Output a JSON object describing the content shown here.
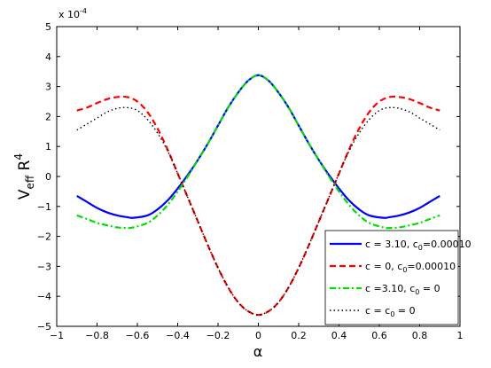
{
  "chart_data": {
    "type": "line",
    "xlabel": "α",
    "ylabel": "V",
    "ylabel_sub": "eff",
    "ylabel_tail": " R",
    "ylabel_sup": "4",
    "exponent_label": "x 10",
    "exponent_power": "-4",
    "xlim": [
      -1,
      1
    ],
    "ylim": [
      -5,
      5
    ],
    "xticks": [
      "−1",
      "−0.8",
      "−0.6",
      "−0.4",
      "−0.2",
      "0",
      "0.2",
      "0.4",
      "0.6",
      "0.8",
      "1"
    ],
    "yticks": [
      "−5",
      "−4",
      "−3",
      "−2",
      "−1",
      "0",
      "1",
      "2",
      "3",
      "4",
      "5"
    ],
    "grid": false,
    "legend_position": "bottom-right",
    "series": [
      {
        "legend_main": "c = 3.10, c",
        "legend_sub": "0",
        "legend_tail": "=0.00010",
        "color": "#0000ff",
        "dash": "solid",
        "x": [
          -0.9,
          -0.85,
          -0.8,
          -0.75,
          -0.7,
          -0.65,
          -0.62,
          -0.55,
          -0.5,
          -0.45,
          -0.4,
          -0.35,
          -0.3,
          -0.25,
          -0.2,
          -0.15,
          -0.1,
          -0.05,
          0,
          0.05,
          0.1,
          0.15,
          0.2,
          0.25,
          0.3,
          0.35,
          0.4,
          0.45,
          0.5,
          0.55,
          0.62,
          0.65,
          0.7,
          0.75,
          0.8,
          0.85,
          0.9
        ],
        "y": [
          -0.65,
          -0.85,
          -1.05,
          -1.2,
          -1.3,
          -1.36,
          -1.38,
          -1.3,
          -1.1,
          -0.8,
          -0.4,
          0.05,
          0.55,
          1.1,
          1.7,
          2.3,
          2.8,
          3.2,
          3.38,
          3.2,
          2.8,
          2.3,
          1.7,
          1.1,
          0.55,
          0.05,
          -0.4,
          -0.8,
          -1.1,
          -1.3,
          -1.38,
          -1.36,
          -1.3,
          -1.2,
          -1.05,
          -0.85,
          -0.65
        ]
      },
      {
        "legend_main": "c = 0, c",
        "legend_sub": "0",
        "legend_tail": "=0.00010",
        "color": "#ff0000",
        "dash": "7,4",
        "x": [
          -0.9,
          -0.85,
          -0.8,
          -0.75,
          -0.7,
          -0.65,
          -0.6,
          -0.55,
          -0.5,
          -0.45,
          -0.4,
          -0.35,
          -0.3,
          -0.25,
          -0.2,
          -0.15,
          -0.1,
          -0.05,
          0,
          0.05,
          0.1,
          0.15,
          0.2,
          0.25,
          0.3,
          0.35,
          0.4,
          0.45,
          0.5,
          0.55,
          0.6,
          0.65,
          0.7,
          0.75,
          0.8,
          0.85,
          0.9
        ],
        "y": [
          2.2,
          2.3,
          2.45,
          2.58,
          2.65,
          2.65,
          2.5,
          2.15,
          1.6,
          0.9,
          0.1,
          -0.7,
          -1.5,
          -2.3,
          -3.05,
          -3.7,
          -4.2,
          -4.5,
          -4.62,
          -4.5,
          -4.2,
          -3.7,
          -3.05,
          -2.3,
          -1.5,
          -0.7,
          0.1,
          0.9,
          1.6,
          2.15,
          2.5,
          2.65,
          2.65,
          2.58,
          2.45,
          2.3,
          2.2
        ]
      },
      {
        "legend_main": "c =3.10, c",
        "legend_sub": "0",
        "legend_tail": " = 0",
        "color": "#00dd00",
        "dash": "7,3,2,3",
        "x": [
          -0.9,
          -0.85,
          -0.8,
          -0.75,
          -0.7,
          -0.65,
          -0.62,
          -0.55,
          -0.5,
          -0.45,
          -0.4,
          -0.35,
          -0.3,
          -0.25,
          -0.2,
          -0.15,
          -0.1,
          -0.05,
          0,
          0.05,
          0.1,
          0.15,
          0.2,
          0.25,
          0.3,
          0.35,
          0.4,
          0.45,
          0.5,
          0.55,
          0.62,
          0.65,
          0.7,
          0.75,
          0.8,
          0.85,
          0.9
        ],
        "y": [
          -1.3,
          -1.42,
          -1.55,
          -1.63,
          -1.7,
          -1.72,
          -1.7,
          -1.55,
          -1.3,
          -0.95,
          -0.5,
          0.0,
          0.55,
          1.1,
          1.7,
          2.3,
          2.8,
          3.2,
          3.38,
          3.2,
          2.8,
          2.3,
          1.7,
          1.1,
          0.55,
          0.0,
          -0.5,
          -0.95,
          -1.3,
          -1.55,
          -1.7,
          -1.72,
          -1.7,
          -1.63,
          -1.55,
          -1.42,
          -1.3
        ]
      },
      {
        "legend_main": "c = c",
        "legend_sub": "0",
        "legend_tail": " = 0",
        "color": "#000000",
        "dash": "1.5,3",
        "x": [
          -0.9,
          -0.85,
          -0.8,
          -0.75,
          -0.7,
          -0.65,
          -0.6,
          -0.55,
          -0.5,
          -0.45,
          -0.4,
          -0.35,
          -0.3,
          -0.25,
          -0.2,
          -0.15,
          -0.1,
          -0.05,
          0,
          0.05,
          0.1,
          0.15,
          0.2,
          0.25,
          0.3,
          0.35,
          0.4,
          0.45,
          0.5,
          0.55,
          0.6,
          0.65,
          0.7,
          0.75,
          0.8,
          0.85,
          0.9
        ],
        "y": [
          1.55,
          1.75,
          1.95,
          2.15,
          2.27,
          2.3,
          2.2,
          1.9,
          1.45,
          0.85,
          0.1,
          -0.7,
          -1.5,
          -2.3,
          -3.05,
          -3.7,
          -4.2,
          -4.5,
          -4.62,
          -4.5,
          -4.2,
          -3.7,
          -3.05,
          -2.3,
          -1.5,
          -0.7,
          0.1,
          0.85,
          1.45,
          1.9,
          2.2,
          2.3,
          2.27,
          2.15,
          1.95,
          1.75,
          1.55
        ]
      }
    ]
  }
}
